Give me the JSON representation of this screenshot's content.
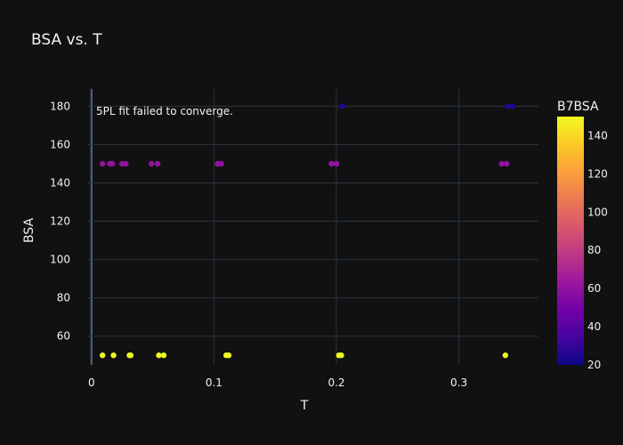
{
  "chart_data": {
    "type": "scatter",
    "title": "BSA vs. T",
    "xlabel": "T",
    "ylabel": "BSA",
    "xlim": [
      -0.0035,
      0.365
    ],
    "ylim": [
      45,
      189
    ],
    "x_ticks": [
      0,
      0.1,
      0.2,
      0.3
    ],
    "x_tick_labels": [
      "0",
      "0.1",
      "0.2",
      "0.3"
    ],
    "y_ticks": [
      60,
      80,
      100,
      120,
      140,
      160,
      180
    ],
    "y_tick_labels": [
      "60",
      "80",
      "100",
      "120",
      "140",
      "160",
      "180"
    ],
    "grid": true,
    "annotation": "5PL fit failed to converge.",
    "colorbar": {
      "title": "B7BSA",
      "min": 20,
      "max": 150,
      "ticks": [
        20,
        40,
        60,
        80,
        100,
        120,
        140
      ],
      "tick_labels": [
        "20",
        "40",
        "60",
        "80",
        "100",
        "120",
        "140"
      ],
      "colorscale": [
        "#0d0887",
        "#46039f",
        "#7201a8",
        "#9c179e",
        "#bd3786",
        "#d8576b",
        "#ed7953",
        "#fb9f3a",
        "#fdca26",
        "#f0f921"
      ]
    },
    "points": [
      {
        "x": 0.009,
        "y": 150,
        "c": 60
      },
      {
        "x": 0.015,
        "y": 150,
        "c": 60
      },
      {
        "x": 0.017,
        "y": 150,
        "c": 60
      },
      {
        "x": 0.025,
        "y": 150,
        "c": 60
      },
      {
        "x": 0.028,
        "y": 150,
        "c": 60
      },
      {
        "x": 0.049,
        "y": 150,
        "c": 60
      },
      {
        "x": 0.054,
        "y": 150,
        "c": 60
      },
      {
        "x": 0.103,
        "y": 150,
        "c": 60
      },
      {
        "x": 0.106,
        "y": 150,
        "c": 60
      },
      {
        "x": 0.196,
        "y": 150,
        "c": 60
      },
      {
        "x": 0.2,
        "y": 150,
        "c": 60
      },
      {
        "x": 0.335,
        "y": 150,
        "c": 60
      },
      {
        "x": 0.339,
        "y": 150,
        "c": 60
      },
      {
        "x": 0.205,
        "y": 180,
        "c": 25
      },
      {
        "x": 0.34,
        "y": 180,
        "c": 25
      },
      {
        "x": 0.344,
        "y": 180,
        "c": 25
      },
      {
        "x": 0.009,
        "y": 50,
        "c": 150
      },
      {
        "x": 0.018,
        "y": 50,
        "c": 150
      },
      {
        "x": 0.031,
        "y": 50,
        "c": 150
      },
      {
        "x": 0.032,
        "y": 50,
        "c": 150
      },
      {
        "x": 0.055,
        "y": 50,
        "c": 150
      },
      {
        "x": 0.059,
        "y": 50,
        "c": 150
      },
      {
        "x": 0.11,
        "y": 50,
        "c": 150
      },
      {
        "x": 0.112,
        "y": 50,
        "c": 150
      },
      {
        "x": 0.202,
        "y": 50,
        "c": 150
      },
      {
        "x": 0.204,
        "y": 50,
        "c": 150
      },
      {
        "x": 0.338,
        "y": 50,
        "c": 150
      }
    ]
  }
}
